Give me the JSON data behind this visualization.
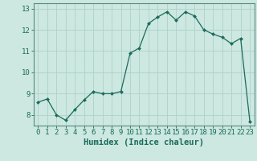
{
  "x": [
    0,
    1,
    2,
    3,
    4,
    5,
    6,
    7,
    8,
    9,
    10,
    11,
    12,
    13,
    14,
    15,
    16,
    17,
    18,
    19,
    20,
    21,
    22,
    23
  ],
  "y": [
    8.6,
    8.75,
    8.0,
    7.75,
    8.25,
    8.7,
    9.1,
    9.0,
    9.0,
    9.1,
    10.9,
    11.15,
    12.3,
    12.6,
    12.85,
    12.45,
    12.85,
    12.65,
    12.0,
    11.8,
    11.65,
    11.35,
    11.6,
    7.7
  ],
  "line_color": "#1a6b5a",
  "marker": "D",
  "marker_size": 2.0,
  "bg_color": "#cce8e0",
  "grid_color": "#b0d0cc",
  "xlabel": "Humidex (Indice chaleur)",
  "xlim": [
    -0.5,
    23.5
  ],
  "ylim": [
    7.5,
    13.25
  ],
  "yticks": [
    8,
    9,
    10,
    11,
    12,
    13
  ],
  "xticks": [
    0,
    1,
    2,
    3,
    4,
    5,
    6,
    7,
    8,
    9,
    10,
    11,
    12,
    13,
    14,
    15,
    16,
    17,
    18,
    19,
    20,
    21,
    22,
    23
  ],
  "tick_color": "#1a6b5a",
  "axis_color": "#5a8a80",
  "label_fontsize": 7.5,
  "tick_fontsize": 6.5
}
